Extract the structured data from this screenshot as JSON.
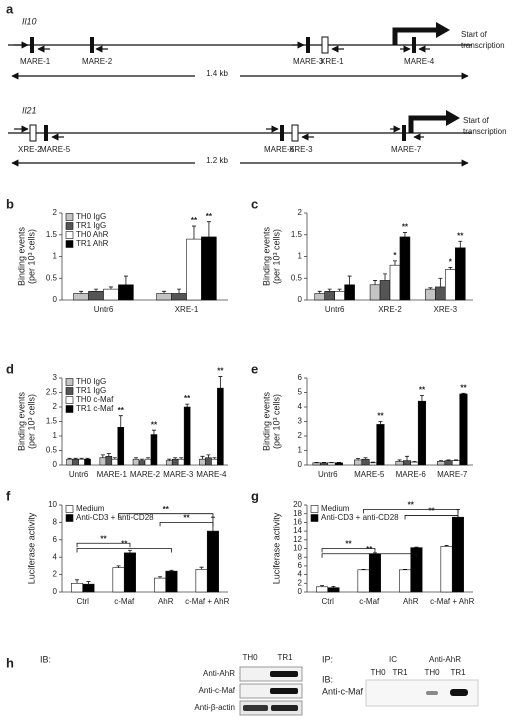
{
  "panel_a": {
    "label": "a",
    "genes": [
      {
        "name": "Il10",
        "sites": [
          "MARE-1",
          "MARE-2",
          "MARE-3",
          "XRE-1",
          "MARE-4"
        ],
        "length": "1.4 kb",
        "tss": [
          "Start of",
          "transcription"
        ]
      },
      {
        "name": "Il21",
        "sites": [
          "XRE-2",
          "MARE-5",
          "MARE-6",
          "XRE-3",
          "MARE-7"
        ],
        "length": "1.2 kb",
        "tss": [
          "Start of",
          "transcription"
        ]
      }
    ]
  },
  "chart_data": [
    {
      "type": "bar",
      "label": "b",
      "ylabel": [
        "Binding events",
        "(per 10³ cells)"
      ],
      "categories": [
        "Untr6",
        "XRE-1"
      ],
      "series": [
        {
          "name": "TH0 IgG",
          "color": "#c4c4c4",
          "values": [
            0.15,
            0.15
          ],
          "errors": [
            0.05,
            0.05
          ]
        },
        {
          "name": "TR1 IgG",
          "color": "#555555",
          "values": [
            0.2,
            0.15
          ],
          "errors": [
            0.05,
            0.1
          ]
        },
        {
          "name": "TH0 AhR",
          "color": "#ffffff",
          "values": [
            0.25,
            1.4
          ],
          "errors": [
            0.05,
            0.3
          ]
        },
        {
          "name": "TR1 AhR",
          "color": "#000000",
          "values": [
            0.35,
            1.45
          ],
          "errors": [
            0.2,
            0.35
          ]
        }
      ],
      "ylim": [
        0,
        2
      ],
      "yticks": [
        0,
        0.5,
        1,
        1.5,
        2
      ],
      "legend": "top-left",
      "annotations": [
        "**",
        "**"
      ]
    },
    {
      "type": "bar",
      "label": "c",
      "ylabel": [
        "Binding events",
        "(per 10³ cells)"
      ],
      "categories": [
        "Untr6",
        "XRE-2",
        "XRE-3"
      ],
      "series": [
        {
          "color": "#c4c4c4",
          "values": [
            0.15,
            0.35,
            0.25
          ],
          "errors": [
            0.05,
            0.1,
            0.03
          ]
        },
        {
          "color": "#555555",
          "values": [
            0.2,
            0.45,
            0.3
          ],
          "errors": [
            0.05,
            0.15,
            0.2
          ]
        },
        {
          "color": "#ffffff",
          "values": [
            0.2,
            0.8,
            0.7
          ],
          "errors": [
            0.05,
            0.1,
            0.05
          ]
        },
        {
          "color": "#000000",
          "values": [
            0.35,
            1.45,
            1.2
          ],
          "errors": [
            0.2,
            0.1,
            0.15
          ]
        }
      ],
      "ylim": [
        0,
        2
      ],
      "yticks": [
        0,
        0.5,
        1,
        1.5,
        2
      ],
      "annotations": [
        "*",
        "**",
        "*",
        "**"
      ]
    },
    {
      "type": "bar",
      "label": "d",
      "ylabel": [
        "Binding events",
        "(per 10³ cells)"
      ],
      "categories": [
        "Untr6",
        "MARE-1",
        "MARE-2",
        "MARE-3",
        "MARE-4"
      ],
      "series": [
        {
          "name": "TH0 IgG",
          "color": "#c4c4c4",
          "values": [
            0.2,
            0.25,
            0.2,
            0.15,
            0.2
          ],
          "errors": [
            0.03,
            0.1,
            0.05,
            0.05,
            0.1
          ]
        },
        {
          "name": "TR1 IgG",
          "color": "#555555",
          "values": [
            0.2,
            0.3,
            0.15,
            0.2,
            0.25
          ],
          "errors": [
            0.03,
            0.1,
            0.05,
            0.05,
            0.1
          ]
        },
        {
          "name": "TH0 c-Maf",
          "color": "#ffffff",
          "values": [
            0.2,
            0.2,
            0.2,
            0.2,
            0.2
          ],
          "errors": [
            0.03,
            0.05,
            0.05,
            0.05,
            0.05
          ]
        },
        {
          "name": "TR1 c-Maf",
          "color": "#000000",
          "values": [
            0.2,
            1.3,
            1.05,
            2.0,
            2.65
          ],
          "errors": [
            0.03,
            0.4,
            0.15,
            0.1,
            0.4
          ]
        }
      ],
      "ylim": [
        0,
        3
      ],
      "yticks": [
        0,
        0.5,
        1,
        1.5,
        2,
        2.5,
        3
      ],
      "legend": "top-left",
      "annotations": [
        "**",
        "**",
        "**",
        "**"
      ]
    },
    {
      "type": "bar",
      "label": "e",
      "ylabel": [
        "Binding events",
        "(per 10³ cells)"
      ],
      "categories": [
        "Untr6",
        "MARE-5",
        "MARE-6",
        "MARE-7"
      ],
      "series": [
        {
          "color": "#c4c4c4",
          "values": [
            0.15,
            0.35,
            0.25,
            0.25
          ],
          "errors": [
            0.03,
            0.1,
            0.1,
            0.05
          ]
        },
        {
          "color": "#555555",
          "values": [
            0.15,
            0.4,
            0.3,
            0.3
          ],
          "errors": [
            0.03,
            0.1,
            0.3,
            0.05
          ]
        },
        {
          "color": "#ffffff",
          "values": [
            0.15,
            0.15,
            0.2,
            0.3
          ],
          "errors": [
            0.03,
            0.05,
            0.05,
            0.05
          ]
        },
        {
          "color": "#000000",
          "values": [
            0.15,
            2.8,
            4.4,
            4.9
          ],
          "errors": [
            0.03,
            0.2,
            0.4,
            0.05
          ]
        }
      ],
      "ylim": [
        0,
        6
      ],
      "yticks": [
        0,
        1,
        2,
        3,
        4,
        5,
        6
      ],
      "annotations": [
        "**",
        "**",
        "**"
      ]
    },
    {
      "type": "bar",
      "label": "f",
      "ylabel": [
        "Luciferase activity"
      ],
      "categories": [
        "Ctrl",
        "c-Maf",
        "AhR",
        "c-Maf + AhR"
      ],
      "series": [
        {
          "name": "Medium",
          "color": "#ffffff",
          "values": [
            1.0,
            2.8,
            1.6,
            2.6
          ],
          "errors": [
            0.4,
            0.2,
            0.15,
            0.25
          ]
        },
        {
          "name": "Anti-CD3 + anti-CD28",
          "color": "#000000",
          "values": [
            0.9,
            4.5,
            2.4,
            7.0
          ],
          "errors": [
            0.3,
            0.3,
            0.1,
            1.6
          ]
        }
      ],
      "ylim": [
        0,
        10
      ],
      "yticks": [
        0,
        2,
        4,
        6,
        8,
        10
      ],
      "legend": "top-left",
      "annotations": [
        "**",
        "**",
        "**",
        "**"
      ]
    },
    {
      "type": "bar",
      "label": "g",
      "ylabel": [
        "Luciferase activity"
      ],
      "categories": [
        "Ctrl",
        "c-Maf",
        "AhR",
        "c-Maf + AhR"
      ],
      "series": [
        {
          "name": "Medium",
          "color": "#ffffff",
          "values": [
            1.2,
            5.1,
            5.1,
            10.5
          ],
          "errors": [
            0.3,
            0.1,
            0.1,
            0.2
          ]
        },
        {
          "name": "Anti-CD3 + anti-CD28",
          "color": "#000000",
          "values": [
            1.0,
            8.8,
            10.2,
            17.2
          ],
          "errors": [
            0.3,
            0.2,
            0.1,
            1.8
          ]
        }
      ],
      "ylim": [
        0,
        20
      ],
      "yticks": [
        0,
        2,
        4,
        6,
        8,
        10,
        12,
        14,
        16,
        18,
        20
      ],
      "legend": "top-left",
      "annotations": [
        "**",
        "**",
        "**",
        "**"
      ]
    }
  ],
  "panel_h": {
    "label": "h",
    "left": {
      "ib": "IB:",
      "lanes": [
        "TH0",
        "TR1"
      ],
      "rows": [
        "Anti-AhR",
        "Anti-c-Maf",
        "Anti-β-actin"
      ]
    },
    "right": {
      "ip": "IP:",
      "groups": [
        "IC",
        "Anti-AhR"
      ],
      "lanes": [
        "TH0",
        "TR1",
        "TH0",
        "TR1"
      ],
      "ib": "IB:",
      "row": "Anti-c-Maf"
    }
  }
}
